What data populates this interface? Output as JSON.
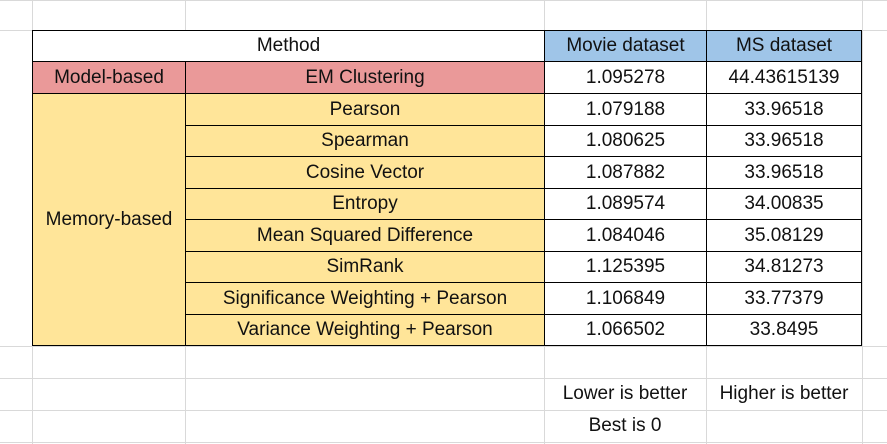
{
  "table": {
    "header": {
      "method": "Method",
      "movie": "Movie dataset",
      "ms": "MS dataset"
    },
    "groups": {
      "model": "Model-based",
      "memory": "Memory-based"
    },
    "rows": [
      {
        "method": "EM Clustering",
        "movie": "1.095278",
        "ms": "44.43615139"
      },
      {
        "method": "Pearson",
        "movie": "1.079188",
        "ms": "33.96518"
      },
      {
        "method": "Spearman",
        "movie": "1.080625",
        "ms": "33.96518"
      },
      {
        "method": "Cosine Vector",
        "movie": "1.087882",
        "ms": "33.96518"
      },
      {
        "method": "Entropy",
        "movie": "1.089574",
        "ms": "34.00835"
      },
      {
        "method": "Mean Squared Difference",
        "movie": "1.084046",
        "ms": "35.08129"
      },
      {
        "method": "SimRank",
        "movie": "1.125395",
        "ms": "34.81273"
      },
      {
        "method": "Significance Weighting + Pearson",
        "movie": "1.106849",
        "ms": "33.77379"
      },
      {
        "method": "Variance Weighting + Pearson",
        "movie": "1.066502",
        "ms": "33.8495"
      }
    ]
  },
  "notes": {
    "movie_line1": "Lower is better",
    "movie_line2": "Best is 0",
    "ms_line1": "Higher is better"
  },
  "colors": {
    "header_blue": "#9fc5e8",
    "model_red": "#ea9999",
    "memory_yellow": "#ffe599"
  }
}
